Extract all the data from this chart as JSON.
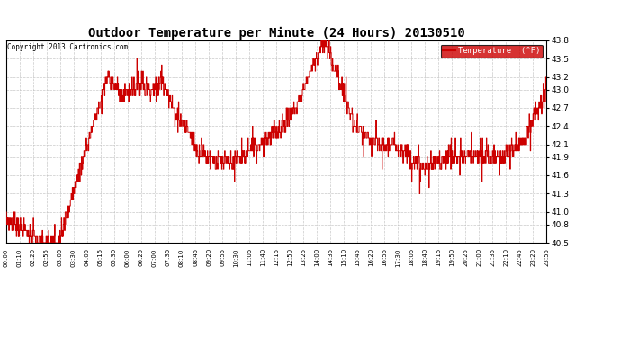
{
  "title": "Outdoor Temperature per Minute (24 Hours) 20130510",
  "copyright_text": "Copyright 2013 Cartronics.com",
  "legend_label": "Temperature  (°F)",
  "legend_bg": "#cc0000",
  "legend_text_color": "#ffffff",
  "line_color": "#cc0000",
  "background_color": "#ffffff",
  "grid_color": "#bbbbbb",
  "ylim": [
    40.5,
    43.8
  ],
  "yticks": [
    40.5,
    40.8,
    41.0,
    41.3,
    41.6,
    41.9,
    42.1,
    42.4,
    42.7,
    43.0,
    43.2,
    43.5,
    43.8
  ],
  "x_tick_labels": [
    "00:00",
    "01:10",
    "02:20",
    "02:55",
    "03:05",
    "03:30",
    "04:05",
    "05:15",
    "05:30",
    "06:00",
    "06:25",
    "07:00",
    "07:35",
    "08:10",
    "08:45",
    "09:20",
    "09:55",
    "10:30",
    "11:05",
    "11:40",
    "12:15",
    "12:50",
    "13:25",
    "14:00",
    "14:35",
    "15:10",
    "15:45",
    "16:20",
    "16:55",
    "17:30",
    "18:05",
    "18:40",
    "19:15",
    "19:50",
    "20:25",
    "21:00",
    "21:35",
    "22:10",
    "22:45",
    "23:20",
    "23:55"
  ],
  "figsize": [
    6.9,
    3.75
  ],
  "dpi": 100
}
